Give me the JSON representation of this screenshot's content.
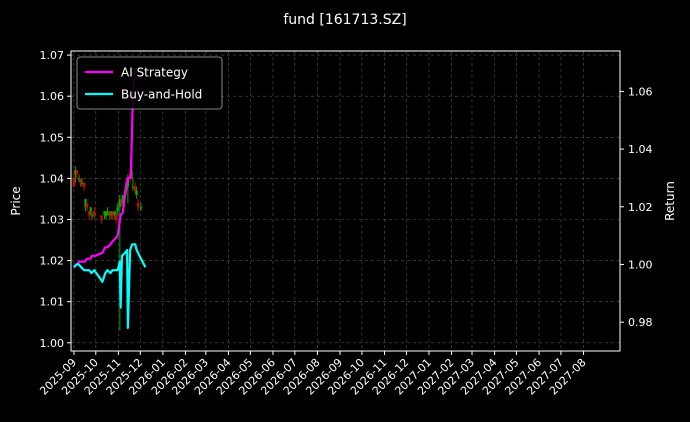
{
  "chart_data": {
    "type": "line",
    "title": "fund [161713.SZ]",
    "ylabel_left": "Price",
    "ylabel_right": "Return",
    "ylim_left": [
      0.998,
      1.071
    ],
    "ylim_right": [
      0.97,
      1.074
    ],
    "xlim": [
      "2025-08-28",
      "2027-09-20"
    ],
    "grid": true,
    "legend_position": "top-left",
    "background": "#000000",
    "yticks_left": [
      "1.00",
      "1.01",
      "1.02",
      "1.03",
      "1.04",
      "1.05",
      "1.06",
      "1.07"
    ],
    "yticks_right": [
      "0.98",
      "1.00",
      "1.02",
      "1.04",
      "1.06"
    ],
    "xticks": [
      "2025-09",
      "2025-10",
      "2025-11",
      "2025-12",
      "2026-01",
      "2026-02",
      "2026-03",
      "2026-04",
      "2026-05",
      "2026-06",
      "2026-07",
      "2026-08",
      "2026-09",
      "2026-10",
      "2026-11",
      "2026-12",
      "2027-01",
      "2027-02",
      "2027-03",
      "2027-04",
      "2027-05",
      "2027-06",
      "2027-07",
      "2027-08"
    ],
    "series": [
      {
        "name": "AI Strategy",
        "color": "#ff00ff",
        "axis": "right",
        "x": [
          "2025-09-01",
          "2025-09-05",
          "2025-09-08",
          "2025-09-12",
          "2025-09-16",
          "2025-09-19",
          "2025-09-23",
          "2025-09-26",
          "2025-09-30",
          "2025-10-10",
          "2025-10-14",
          "2025-10-17",
          "2025-10-21",
          "2025-10-24",
          "2025-10-28",
          "2025-10-31",
          "2025-11-04",
          "2025-11-07",
          "2025-11-12",
          "2025-11-14",
          "2025-11-18",
          "2025-11-21",
          "2025-11-24"
        ],
        "y": [
          0.999,
          1.0,
          1.001,
          1.001,
          1.001,
          1.002,
          1.002,
          1.003,
          1.003,
          1.004,
          1.006,
          1.006,
          1.007,
          1.008,
          1.009,
          1.01,
          1.017,
          1.018,
          1.028,
          1.03,
          1.03,
          1.06,
          1.068
        ]
      },
      {
        "name": "Buy-and-Hold",
        "color": "#00ffff",
        "axis": "right",
        "x": [
          "2025-09-01",
          "2025-09-04",
          "2025-09-08",
          "2025-09-11",
          "2025-09-15",
          "2025-09-18",
          "2025-09-22",
          "2025-09-25",
          "2025-09-29",
          "2025-10-10",
          "2025-10-14",
          "2025-10-17",
          "2025-10-21",
          "2025-10-24",
          "2025-10-28",
          "2025-10-31",
          "2025-11-03",
          "2025-11-04",
          "2025-11-06",
          "2025-11-10",
          "2025-11-13",
          "2025-11-14",
          "2025-11-17",
          "2025-11-20",
          "2025-11-24",
          "2025-11-26",
          "2025-11-28",
          "2025-12-02",
          "2025-12-04",
          "2025-12-08"
        ],
        "y": [
          0.999,
          1.0,
          1.0,
          0.999,
          0.998,
          0.998,
          0.998,
          0.997,
          0.998,
          0.994,
          0.997,
          0.998,
          0.997,
          0.998,
          0.998,
          0.998,
          1.001,
          0.985,
          1.003,
          1.004,
          1.005,
          0.978,
          1.005,
          1.007,
          1.007,
          1.005,
          1.004,
          1.002,
          1.001,
          0.999
        ]
      },
      {
        "name": "",
        "type": "candlestick",
        "axis": "left",
        "up_color": "#00aa00",
        "down_color": "#dd0000",
        "x": [
          "2025-09-01",
          "2025-09-03",
          "2025-09-05",
          "2025-09-08",
          "2025-09-10",
          "2025-09-12",
          "2025-09-15",
          "2025-09-17",
          "2025-09-19",
          "2025-09-22",
          "2025-09-24",
          "2025-09-26",
          "2025-09-29",
          "2025-10-09",
          "2025-10-13",
          "2025-10-15",
          "2025-10-17",
          "2025-10-20",
          "2025-10-22",
          "2025-10-24",
          "2025-10-27",
          "2025-10-29",
          "2025-10-31",
          "2025-11-03",
          "2025-11-05",
          "2025-11-07",
          "2025-11-10",
          "2025-11-12",
          "2025-11-14",
          "2025-11-17",
          "2025-11-19",
          "2025-11-21",
          "2025-11-24",
          "2025-11-26",
          "2025-11-28",
          "2025-12-02"
        ],
        "open": [
          1.04,
          1.041,
          1.042,
          1.04,
          1.04,
          1.039,
          1.039,
          1.033,
          1.034,
          1.032,
          1.032,
          1.031,
          1.032,
          1.031,
          1.031,
          1.031,
          1.031,
          1.032,
          1.031,
          1.032,
          1.031,
          1.031,
          1.032,
          1.033,
          1.035,
          1.034,
          1.036,
          1.038,
          1.038,
          1.041,
          1.04,
          1.038,
          1.038,
          1.036,
          1.034,
          1.033
        ],
        "close": [
          1.038,
          1.042,
          1.041,
          1.04,
          1.039,
          1.039,
          1.038,
          1.035,
          1.033,
          1.031,
          1.033,
          1.031,
          1.031,
          1.03,
          1.032,
          1.031,
          1.032,
          1.031,
          1.032,
          1.031,
          1.032,
          1.03,
          1.033,
          1.035,
          1.034,
          1.036,
          1.037,
          1.037,
          1.04,
          1.04,
          1.042,
          1.038,
          1.037,
          1.037,
          1.033,
          1.033
        ],
        "high": [
          1.041,
          1.043,
          1.042,
          1.041,
          1.04,
          1.04,
          1.039,
          1.035,
          1.034,
          1.032,
          1.033,
          1.032,
          1.033,
          1.031,
          1.032,
          1.032,
          1.033,
          1.032,
          1.032,
          1.032,
          1.032,
          1.032,
          1.034,
          1.036,
          1.035,
          1.036,
          1.038,
          1.04,
          1.041,
          1.042,
          1.042,
          1.04,
          1.039,
          1.038,
          1.035,
          1.034
        ],
        "low": [
          1.038,
          1.039,
          1.04,
          1.039,
          1.038,
          1.038,
          1.037,
          1.032,
          1.032,
          1.03,
          1.031,
          1.03,
          1.03,
          1.029,
          1.03,
          1.03,
          1.031,
          1.03,
          1.03,
          1.03,
          1.03,
          1.029,
          1.031,
          1.003,
          1.033,
          1.033,
          1.035,
          1.036,
          1.034,
          1.039,
          1.04,
          1.037,
          1.036,
          1.035,
          1.032,
          1.032
        ]
      }
    ]
  }
}
